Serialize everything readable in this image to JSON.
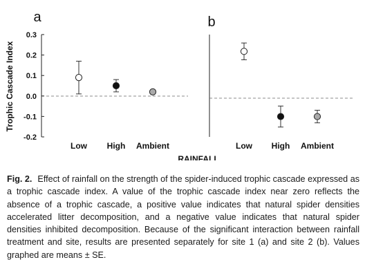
{
  "chart_data": {
    "type": "scatter",
    "ylabel": "Trophic Cascade Index",
    "xlabel": "RAINFALL",
    "categories": [
      "Low",
      "High",
      "Ambient"
    ],
    "ylim": [
      -0.2,
      0.3
    ],
    "yticks": [
      "0.3",
      "0.2",
      "0.1",
      "0.0",
      "-0.1",
      "-0.2"
    ],
    "ytick_values": [
      0.3,
      0.2,
      0.1,
      0.0,
      -0.1,
      -0.2
    ],
    "reference_line": 0,
    "panels": [
      {
        "label": "a",
        "points": [
          {
            "category": "Low",
            "value": 0.09,
            "se": 0.08,
            "fill": "#ffffff"
          },
          {
            "category": "High",
            "value": 0.05,
            "se": 0.03,
            "fill": "#111111"
          },
          {
            "category": "Ambient",
            "value": 0.02,
            "se": 0.0,
            "fill": "#aaaaaa"
          }
        ]
      },
      {
        "label": "b",
        "points": [
          {
            "category": "Low",
            "value": 0.22,
            "se": 0.04,
            "fill": "#ffffff"
          },
          {
            "category": "High",
            "value": -0.09,
            "se": 0.05,
            "fill": "#111111"
          },
          {
            "category": "Ambient",
            "value": -0.09,
            "se": 0.03,
            "fill": "#aaaaaa"
          }
        ]
      }
    ]
  },
  "caption": {
    "label": "Fig. 2.",
    "text": "Effect of rainfall on the strength of the spider-induced trophic cascade expressed as a trophic cascade index. A value of the trophic cascade index near zero reflects the absence of a trophic cascade, a positive value indicates that natural spider densities accelerated litter decomposition, and a negative value indicates that natural spider densities inhibited decomposition. Because of the significant interaction between rainfall treatment and site, results are presented separately for site 1 (a) and site 2 (b). Values graphed are means ± SE."
  }
}
